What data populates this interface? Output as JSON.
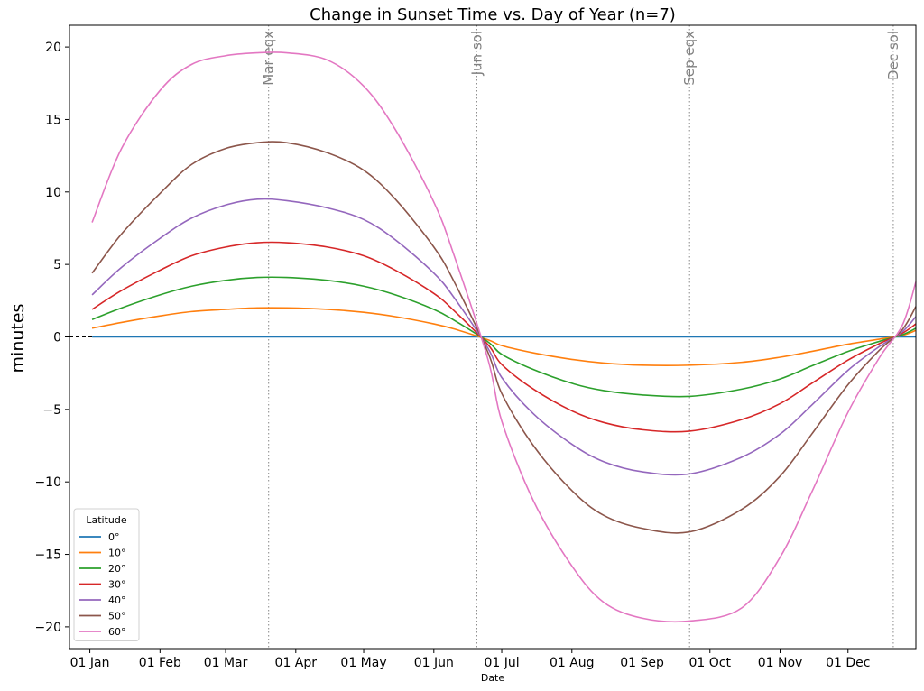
{
  "chart_data": {
    "type": "line",
    "title": "Change in Sunset Time vs. Day of Year (n=7)",
    "xlabel": "Date",
    "ylabel": "minutes",
    "ylim": [
      -21.5,
      21.5
    ],
    "xlim": [
      "2023-12-23",
      "2024-12-31"
    ],
    "y_ticks": [
      -20,
      -15,
      -10,
      -5,
      0,
      5,
      10,
      15,
      20
    ],
    "y_tick_labels": [
      "−20",
      "−15",
      "−10",
      "−5",
      "0",
      "5",
      "10",
      "15",
      "20"
    ],
    "x_ticks": [
      "2024-01-01",
      "2024-02-01",
      "2024-03-01",
      "2024-04-01",
      "2024-05-01",
      "2024-06-01",
      "2024-07-01",
      "2024-08-01",
      "2024-09-01",
      "2024-10-01",
      "2024-11-01",
      "2024-12-01"
    ],
    "x_tick_labels": [
      "01 Jan",
      "01 Feb",
      "01 Mar",
      "01 Apr",
      "01 May",
      "01 Jun",
      "01 Jul",
      "01 Aug",
      "01 Sep",
      "01 Oct",
      "01 Nov",
      "01 Dec"
    ],
    "zero_line": true,
    "grid": false,
    "events": [
      {
        "label": "Mar eqx",
        "date": "2024-03-20"
      },
      {
        "label": "Jun sol",
        "date": "2024-06-20"
      },
      {
        "label": "Sep eqx",
        "date": "2024-09-22"
      },
      {
        "label": "Dec sol",
        "date": "2024-12-21"
      }
    ],
    "legend": {
      "title": "Latitude",
      "placement": "lower-left"
    },
    "dates": [
      "2024-01-02",
      "2024-01-15",
      "2024-02-01",
      "2024-02-15",
      "2024-03-01",
      "2024-03-15",
      "2024-03-28",
      "2024-04-15",
      "2024-05-01",
      "2024-05-15",
      "2024-06-01",
      "2024-06-10",
      "2024-06-25",
      "2024-07-01",
      "2024-07-15",
      "2024-08-01",
      "2024-08-15",
      "2024-09-01",
      "2024-09-22",
      "2024-10-15",
      "2024-11-01",
      "2024-11-15",
      "2024-12-01",
      "2024-12-15",
      "2024-12-25",
      "2024-12-31"
    ],
    "series": [
      {
        "name": "0°",
        "color": "#1f77b4",
        "values": [
          0,
          0,
          0,
          0,
          0,
          0,
          0,
          0,
          0,
          0,
          0,
          0,
          0,
          0,
          0,
          0,
          0,
          0,
          0,
          0,
          0,
          0,
          0,
          0,
          0,
          0
        ]
      },
      {
        "name": "10°",
        "color": "#ff7f0e",
        "values": [
          0.6,
          1.0,
          1.45,
          1.75,
          1.9,
          2.0,
          2.0,
          1.9,
          1.7,
          1.4,
          0.9,
          0.55,
          -0.2,
          -0.6,
          -1.1,
          -1.55,
          -1.8,
          -1.95,
          -1.95,
          -1.75,
          -1.4,
          -1.0,
          -0.5,
          -0.15,
          0.1,
          0.45
        ]
      },
      {
        "name": "20°",
        "color": "#2ca02c",
        "values": [
          1.2,
          2.0,
          2.9,
          3.5,
          3.9,
          4.1,
          4.1,
          3.9,
          3.5,
          2.9,
          1.9,
          1.15,
          -0.35,
          -1.2,
          -2.25,
          -3.2,
          -3.7,
          -4.0,
          -4.1,
          -3.6,
          -2.9,
          -2.0,
          -1.0,
          -0.3,
          0.15,
          0.6
        ]
      },
      {
        "name": "30°",
        "color": "#d62728",
        "values": [
          1.9,
          3.2,
          4.6,
          5.6,
          6.2,
          6.5,
          6.5,
          6.2,
          5.6,
          4.6,
          3.0,
          1.8,
          -0.55,
          -1.9,
          -3.6,
          -5.1,
          -5.9,
          -6.4,
          -6.5,
          -5.7,
          -4.6,
          -3.2,
          -1.6,
          -0.45,
          0.25,
          0.9
        ]
      },
      {
        "name": "40°",
        "color": "#9467bd",
        "values": [
          2.9,
          4.8,
          6.8,
          8.2,
          9.1,
          9.5,
          9.4,
          8.9,
          8.1,
          6.7,
          4.4,
          2.7,
          -0.8,
          -2.8,
          -5.3,
          -7.4,
          -8.6,
          -9.3,
          -9.45,
          -8.3,
          -6.7,
          -4.7,
          -2.3,
          -0.65,
          0.35,
          1.4
        ]
      },
      {
        "name": "50°",
        "color": "#8c564b",
        "values": [
          4.4,
          7.1,
          9.9,
          11.9,
          13.0,
          13.4,
          13.4,
          12.7,
          11.5,
          9.5,
          6.2,
          3.8,
          -1.1,
          -3.9,
          -7.5,
          -10.6,
          -12.3,
          -13.2,
          -13.45,
          -11.9,
          -9.6,
          -6.7,
          -3.3,
          -0.9,
          0.5,
          2.1
        ]
      },
      {
        "name": "60°",
        "color": "#e377c2",
        "values": [
          7.9,
          13.0,
          17.0,
          18.8,
          19.4,
          19.6,
          19.6,
          19.1,
          17.3,
          14.3,
          9.3,
          5.6,
          -1.6,
          -5.8,
          -11.3,
          -15.8,
          -18.3,
          -19.4,
          -19.6,
          -18.7,
          -15.2,
          -10.7,
          -5.2,
          -1.4,
          0.8,
          3.8
        ]
      }
    ]
  }
}
